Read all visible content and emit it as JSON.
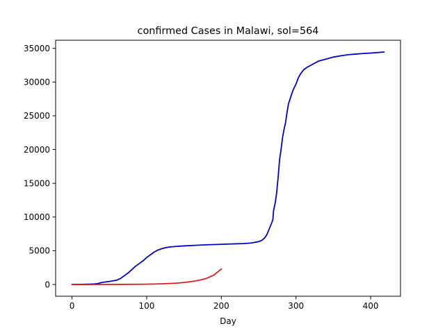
{
  "chart_data": {
    "type": "line",
    "title": "confirmed Cases in Malawi, sol=564",
    "xlabel": "Day",
    "ylabel": "",
    "xlim": [
      -22,
      440
    ],
    "ylim": [
      -1740,
      36200
    ],
    "x_ticks": [
      0,
      100,
      200,
      300,
      400
    ],
    "y_ticks": [
      0,
      5000,
      10000,
      15000,
      20000,
      25000,
      30000,
      35000
    ],
    "grid": false,
    "legend": "none",
    "series": [
      {
        "color": "#0000cd",
        "points": [
          [
            0,
            0
          ],
          [
            10,
            20
          ],
          [
            20,
            40
          ],
          [
            30,
            80
          ],
          [
            35,
            150
          ],
          [
            40,
            300
          ],
          [
            45,
            380
          ],
          [
            50,
            450
          ],
          [
            55,
            550
          ],
          [
            60,
            650
          ],
          [
            65,
            900
          ],
          [
            70,
            1300
          ],
          [
            75,
            1700
          ],
          [
            80,
            2200
          ],
          [
            85,
            2700
          ],
          [
            90,
            3100
          ],
          [
            95,
            3500
          ],
          [
            100,
            4000
          ],
          [
            105,
            4400
          ],
          [
            110,
            4800
          ],
          [
            115,
            5100
          ],
          [
            120,
            5300
          ],
          [
            125,
            5450
          ],
          [
            130,
            5550
          ],
          [
            140,
            5650
          ],
          [
            150,
            5720
          ],
          [
            160,
            5780
          ],
          [
            170,
            5830
          ],
          [
            180,
            5880
          ],
          [
            190,
            5920
          ],
          [
            200,
            5960
          ],
          [
            210,
            6000
          ],
          [
            220,
            6030
          ],
          [
            230,
            6060
          ],
          [
            240,
            6150
          ],
          [
            245,
            6250
          ],
          [
            250,
            6350
          ],
          [
            255,
            6600
          ],
          [
            258,
            6900
          ],
          [
            261,
            7400
          ],
          [
            264,
            8200
          ],
          [
            267,
            9000
          ],
          [
            269,
            9600
          ],
          [
            270,
            11000
          ],
          [
            272,
            12000
          ],
          [
            274,
            13500
          ],
          [
            276,
            15800
          ],
          [
            278,
            18500
          ],
          [
            280,
            20000
          ],
          [
            282,
            21800
          ],
          [
            284,
            23000
          ],
          [
            286,
            24000
          ],
          [
            288,
            25500
          ],
          [
            290,
            26800
          ],
          [
            293,
            27800
          ],
          [
            296,
            28800
          ],
          [
            300,
            29700
          ],
          [
            303,
            30600
          ],
          [
            306,
            31200
          ],
          [
            310,
            31800
          ],
          [
            315,
            32200
          ],
          [
            320,
            32500
          ],
          [
            325,
            32800
          ],
          [
            330,
            33100
          ],
          [
            340,
            33400
          ],
          [
            350,
            33700
          ],
          [
            360,
            33900
          ],
          [
            370,
            34050
          ],
          [
            380,
            34150
          ],
          [
            390,
            34230
          ],
          [
            400,
            34300
          ],
          [
            410,
            34380
          ],
          [
            418,
            34450
          ]
        ]
      },
      {
        "color": "#e31a1c",
        "points": [
          [
            0,
            0
          ],
          [
            20,
            3
          ],
          [
            40,
            8
          ],
          [
            60,
            15
          ],
          [
            80,
            25
          ],
          [
            100,
            45
          ],
          [
            120,
            100
          ],
          [
            140,
            200
          ],
          [
            150,
            300
          ],
          [
            160,
            430
          ],
          [
            170,
            620
          ],
          [
            180,
            900
          ],
          [
            190,
            1400
          ],
          [
            200,
            2300
          ]
        ]
      }
    ]
  }
}
